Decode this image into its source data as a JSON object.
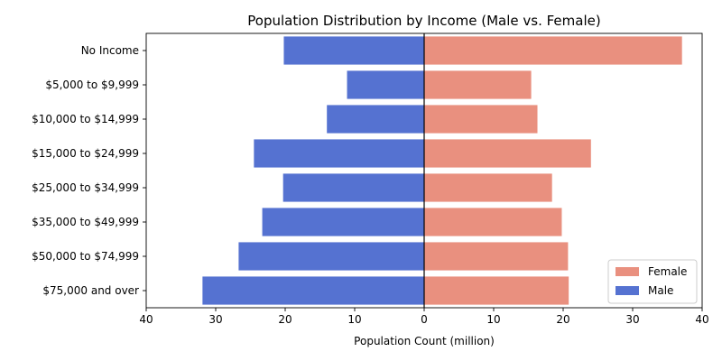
{
  "chart_data": {
    "type": "bar",
    "orientation": "horizontal",
    "title": "Population Distribution by Income (Male vs. Female)",
    "xlabel": "Population Count (million)",
    "ylabel": "",
    "xlim": [
      -40,
      40
    ],
    "xticks": [
      -40,
      -30,
      -20,
      -10,
      0,
      10,
      20,
      30,
      40
    ],
    "xtick_labels": [
      "40",
      "30",
      "20",
      "10",
      "0",
      "10",
      "20",
      "30",
      "40"
    ],
    "categories": [
      "No Income",
      "$5,000 to $9,999",
      "$10,000 to $14,999",
      "$15,000 to $24,999",
      "$25,000 to $34,999",
      "$35,000 to $49,999",
      "$50,000 to $74,999",
      "$75,000 and over"
    ],
    "series": [
      {
        "name": "Female",
        "color": "#e9907f",
        "values": [
          37.1,
          15.4,
          16.3,
          24.0,
          18.4,
          19.8,
          20.7,
          20.8
        ]
      },
      {
        "name": "Male",
        "color": "#5572d1",
        "values": [
          20.2,
          11.1,
          14.0,
          24.5,
          20.3,
          23.3,
          26.7,
          31.9
        ]
      }
    ],
    "male_plotted_negative": true,
    "legend": {
      "position": "bottom-right",
      "entries": [
        "Female",
        "Male"
      ]
    },
    "grid": false
  }
}
